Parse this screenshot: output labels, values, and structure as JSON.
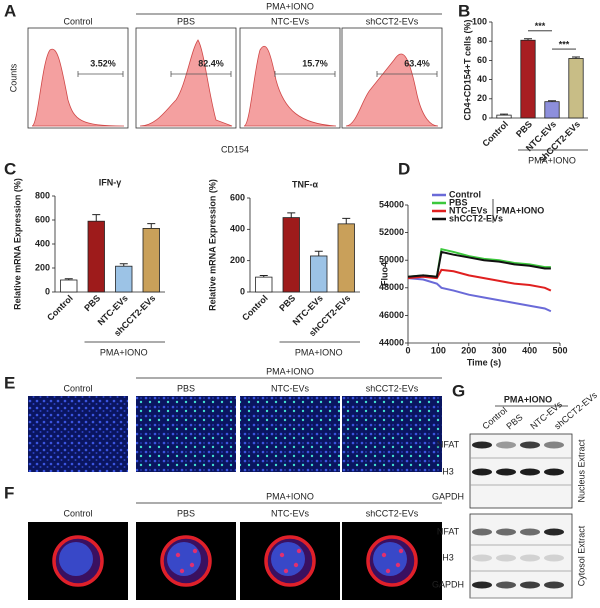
{
  "letters": [
    "A",
    "B",
    "C",
    "D",
    "E",
    "F",
    "G"
  ],
  "panel_a": {
    "group_label": "PMA+IONO",
    "samples": [
      "Control",
      "PBS",
      "NTC-EVs",
      "shCCT2-EVs"
    ],
    "percentages": [
      "3.52%",
      "82.4%",
      "15.7%",
      "63.4%"
    ],
    "y_label": "Counts",
    "x_label": "CD154"
  },
  "chart_data": [
    {
      "type": "bar",
      "y_label": "CD4+CD154+T cells (%)",
      "categories": [
        "Control",
        "PBS",
        "NTC-EVs",
        "shCCT2-EVs"
      ],
      "values": [
        3,
        81,
        17,
        62
      ],
      "errors": [
        1,
        1.5,
        1,
        1.5
      ],
      "colors": [
        "#ffffff",
        "#a81e22",
        "#8d8fdc",
        "#c8bd86"
      ],
      "ylim": [
        0,
        100
      ],
      "yticks": [
        0,
        20,
        40,
        60,
        80,
        100
      ],
      "group_label": "PMA+IONO",
      "annotations": [
        "***",
        "***"
      ]
    },
    {
      "type": "bar",
      "title": "IFN-γ",
      "y_label": "Relative mRNA Expression (%)",
      "categories": [
        "Control",
        "PBS",
        "NTC-EVs",
        "shCCT2-EVs"
      ],
      "values": [
        100,
        590,
        215,
        530
      ],
      "errors": [
        10,
        55,
        20,
        40
      ],
      "colors": [
        "#ffffff",
        "#9e1b1b",
        "#9cc3e6",
        "#c9a05a"
      ],
      "ylim": [
        0,
        800
      ],
      "yticks": [
        0,
        200,
        400,
        600,
        800
      ],
      "group_label": "PMA+IONO"
    },
    {
      "type": "bar",
      "title": "TNF-α",
      "y_label": "Relative mRNA Expression (%)",
      "categories": [
        "Control",
        "PBS",
        "NTC-EVs",
        "shCCT2-EVs"
      ],
      "values": [
        95,
        475,
        230,
        435
      ],
      "errors": [
        10,
        30,
        30,
        35
      ],
      "colors": [
        "#ffffff",
        "#9e1b1b",
        "#9cc3e6",
        "#c9a05a"
      ],
      "ylim": [
        0,
        600
      ],
      "yticks": [
        0,
        200,
        400,
        600
      ],
      "group_label": "PMA+IONO"
    },
    {
      "type": "line",
      "x_label": "Time (s)",
      "y_label": "Fluo4",
      "x": [
        0,
        50,
        95,
        110,
        150,
        200,
        250,
        300,
        350,
        400,
        450,
        470
      ],
      "series": [
        {
          "name": "Control",
          "color": "#6a6ad8",
          "values": [
            48700,
            48600,
            48300,
            48000,
            47800,
            47500,
            47300,
            47100,
            46900,
            46700,
            46500,
            46300
          ]
        },
        {
          "name": "PBS",
          "color": "#3cc83c",
          "values": [
            48800,
            48900,
            48800,
            50800,
            50600,
            50300,
            50100,
            50000,
            49800,
            49700,
            49500,
            49500
          ]
        },
        {
          "name": "NTC-EVs",
          "color": "#e02020",
          "values": [
            48700,
            48800,
            48700,
            49300,
            49200,
            48900,
            48700,
            48500,
            48300,
            48200,
            48000,
            47800
          ]
        },
        {
          "name": "shCCT2-EVs",
          "color": "#111111",
          "values": [
            48800,
            48900,
            48800,
            50600,
            50400,
            50200,
            50000,
            49900,
            49700,
            49600,
            49400,
            49400
          ]
        }
      ],
      "xlim": [
        0,
        500
      ],
      "xticks": [
        0,
        100,
        200,
        300,
        400,
        500
      ],
      "ylim": [
        44000,
        54000
      ],
      "yticks": [
        44000,
        46000,
        48000,
        50000,
        52000,
        54000
      ],
      "legend_group_label": "PMA+IONO"
    }
  ],
  "panel_e": {
    "group_label": "PMA+IONO",
    "samples": [
      "Control",
      "PBS",
      "NTC-EVs",
      "shCCT2-EVs"
    ]
  },
  "panel_f": {
    "group_label": "PMA+IONO",
    "samples": [
      "Control",
      "PBS",
      "NTC-EVs",
      "shCCT2-EVs"
    ]
  },
  "panel_g": {
    "group_label": "PMA+IONO",
    "lanes": [
      "Control",
      "PBS",
      "NTC-EVs",
      "shCCT2-EVs"
    ],
    "rows": [
      "NFAT",
      "H3",
      "GAPDH",
      "NFAT",
      "H3",
      "GAPDH"
    ],
    "fractions": [
      "Nucleus Extract",
      "Cytosol Extract"
    ]
  }
}
